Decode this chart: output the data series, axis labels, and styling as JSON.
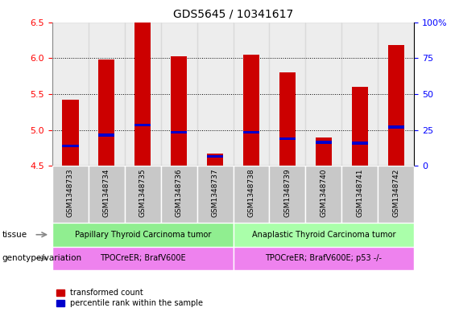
{
  "title": "GDS5645 / 10341617",
  "samples": [
    "GSM1348733",
    "GSM1348734",
    "GSM1348735",
    "GSM1348736",
    "GSM1348737",
    "GSM1348738",
    "GSM1348739",
    "GSM1348740",
    "GSM1348741",
    "GSM1348742"
  ],
  "transformed_count": [
    5.42,
    5.98,
    6.5,
    6.03,
    4.67,
    6.05,
    5.8,
    4.9,
    5.6,
    6.18
  ],
  "percentile_rank": [
    4.78,
    4.93,
    5.07,
    4.97,
    4.63,
    4.97,
    4.88,
    4.83,
    4.82,
    5.04
  ],
  "bar_bottom": 4.5,
  "ylim": [
    4.5,
    6.5
  ],
  "yticks_left": [
    4.5,
    5.0,
    5.5,
    6.0,
    6.5
  ],
  "yticks_right_labels": [
    "0",
    "25",
    "50",
    "75",
    "100%"
  ],
  "bar_color": "#cc0000",
  "percentile_color": "#0000cc",
  "tissue_group1": "Papillary Thyroid Carcinoma tumor",
  "tissue_group2": "Anaplastic Thyroid Carcinoma tumor",
  "genotype_group1": "TPOCreER; BrafV600E",
  "genotype_group2": "TPOCreER; BrafV600E; p53 -/-",
  "tissue_color": "#90ee90",
  "genotype_color": "#ee82ee",
  "group1_count": 5,
  "group2_count": 5,
  "bar_width": 0.45,
  "legend_red": "transformed count",
  "legend_blue": "percentile rank within the sample",
  "label_tissue": "tissue",
  "label_genotype": "genotype/variation",
  "blue_bar_height": 0.04,
  "grid_lines": [
    5.0,
    5.5,
    6.0
  ],
  "fig_width": 5.65,
  "fig_height": 3.93,
  "dpi": 100
}
